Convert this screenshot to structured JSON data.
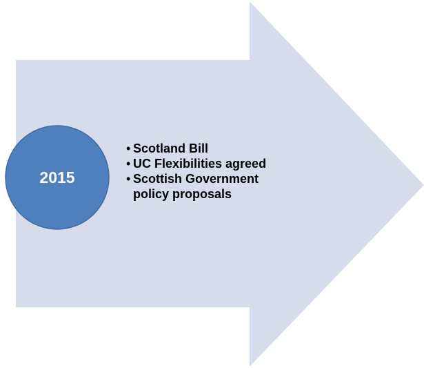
{
  "diagram": {
    "year": "2015",
    "items": [
      "Scotland Bill",
      "UC Flexibilities agreed",
      "Scottish Government policy proposals"
    ],
    "colors": {
      "arrow_fill": "#D6DCEB",
      "circle_fill": "#4F7FBD",
      "circle_stroke": "#3F6AA3",
      "year_text": "#FFFFFF",
      "item_text": "#000000"
    }
  }
}
